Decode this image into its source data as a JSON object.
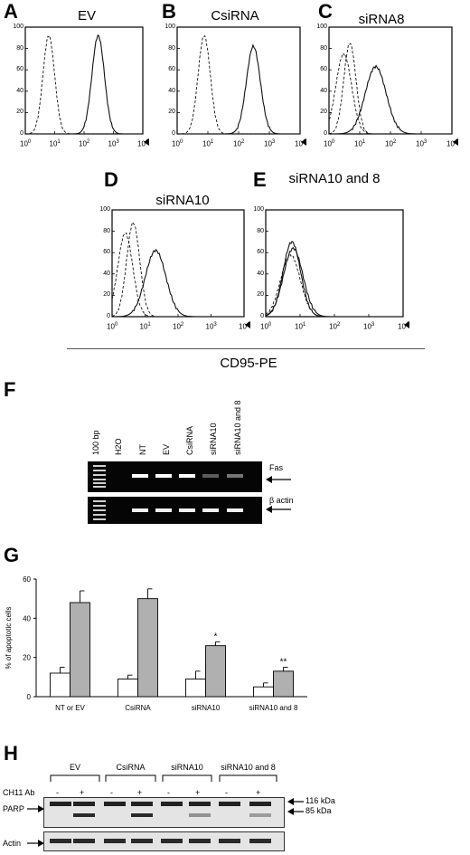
{
  "flow": {
    "panels": [
      {
        "letter": "A",
        "title": "EV"
      },
      {
        "letter": "B",
        "title": "CsiRNA"
      },
      {
        "letter": "C",
        "title": "siRNA8"
      },
      {
        "letter": "D",
        "title": "siRNA10"
      },
      {
        "letter": "E",
        "title": "siRNA10 and 8"
      }
    ],
    "yticks": [
      "100",
      "80",
      "60",
      "40",
      "20",
      "0"
    ],
    "xticks": [
      {
        "base": "10",
        "exp": "0"
      },
      {
        "base": "10",
        "exp": "1"
      },
      {
        "base": "10",
        "exp": "2"
      },
      {
        "base": "10",
        "exp": "3"
      },
      {
        "base": "10",
        "exp": "4"
      }
    ],
    "xlabel": "CD95-PE"
  },
  "gel": {
    "letter": "F",
    "lanes": [
      "100 bp",
      "H2O",
      "NT",
      "EV",
      "CsiRNA",
      "siRNA10",
      "siRNA10 and 8"
    ],
    "band1_label": "Fas",
    "band2_label": "β actin"
  },
  "chart_data": {
    "type": "bar",
    "letter": "G",
    "categories": [
      "NT or EV",
      "CsiRNA",
      "siRNA10",
      "siRNA10 and 8"
    ],
    "series": [
      {
        "name": "",
        "color": "#ffffff",
        "values": [
          12,
          9,
          9,
          5
        ],
        "errors": [
          3,
          2,
          4,
          2
        ]
      },
      {
        "name": "",
        "color": "#b0b0b0",
        "values": [
          48,
          50,
          26,
          13
        ],
        "errors": [
          6,
          5,
          2,
          2
        ]
      }
    ],
    "annotations": [
      "",
      "",
      "*",
      "**"
    ],
    "ylabel": "% of apoptotic cells",
    "ylim": [
      0,
      60
    ],
    "yticks": [
      "0",
      "20",
      "40",
      "60"
    ]
  },
  "western": {
    "letter": "H",
    "groups": [
      "EV",
      "CsiRNA",
      "siRNA10",
      "siRNA10 and 8"
    ],
    "treatment_label": "CH11 Ab",
    "signs": [
      "-",
      "+",
      "-",
      "+",
      "-",
      "+",
      "-",
      "+"
    ],
    "row1_label": "PARP",
    "row2_label": "Actin",
    "kda1": "116 kDa",
    "kda2": "85 kDa"
  }
}
